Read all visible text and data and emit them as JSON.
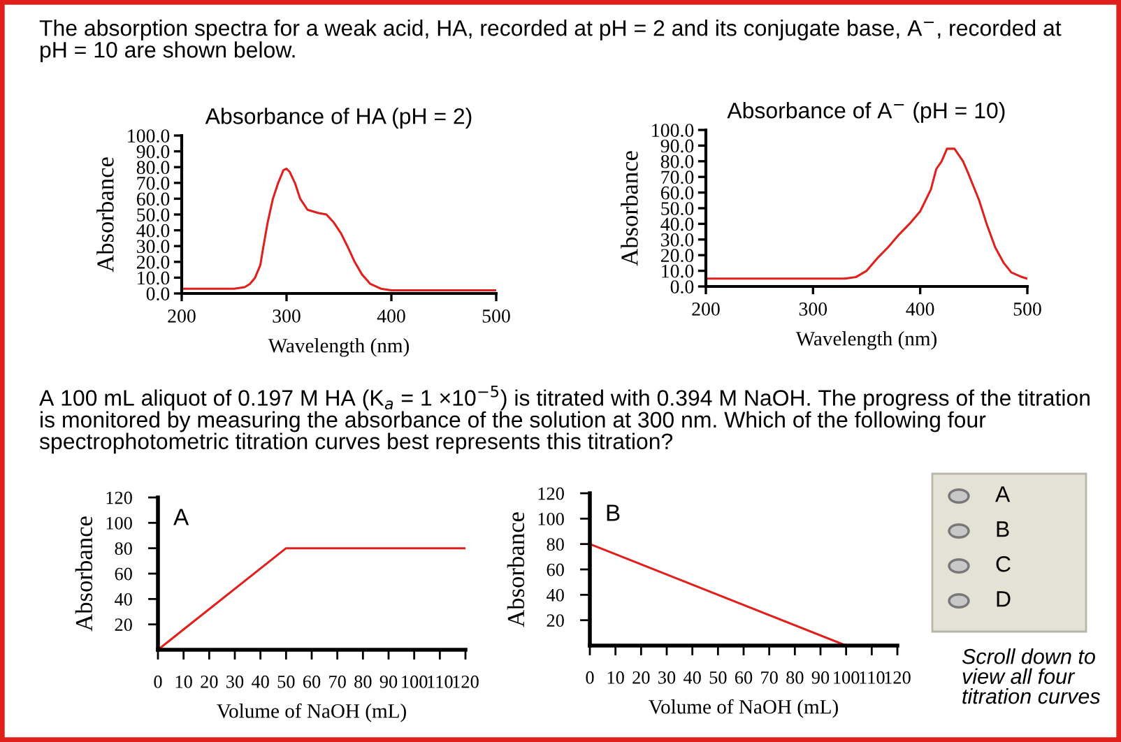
{
  "chart_data": [
    {
      "type": "other",
      "annotations": [
        "The absorption spectra for a weak acid, HA, recorded at pH = 2 and its conjugate base, A$^{−}$, recorded at\npH = 10 are shown below.",
        "A 100 mL aliquot of 0.197 M HA (K$_{a}$ = 1 ×10$^{−5}$) is titrated with 0.394 M NaOH. The progress of the titration\nis monitored by measuring the absorbance of the solution at 300 nm. Which of the following four\nspectrophotometric titration curves best represents this titration?",
        "A",
        "B",
        "C",
        "D",
        "Scroll down to\nview all four\ntitration curves"
      ]
    },
    {
      "type": "line",
      "title": "Absorbance of HA (pH = 2)",
      "xlabel": "Wavelength (nm)",
      "ylabel": "Absorbance",
      "x": [
        200,
        250,
        260,
        265,
        270,
        275,
        278,
        282,
        287,
        292,
        297,
        300,
        303,
        308,
        313,
        320,
        330,
        338,
        345,
        352,
        358,
        365,
        372,
        380,
        390,
        400,
        500
      ],
      "series": [
        {
          "color": "#e0201c",
          "values": [
            3,
            3,
            4,
            6,
            10,
            18,
            30,
            45,
            60,
            70,
            78,
            79,
            77,
            70,
            60,
            53,
            51,
            50,
            45,
            38,
            30,
            20,
            12,
            6,
            3,
            2,
            2
          ]
        }
      ],
      "xlim": [
        200,
        500
      ],
      "xticks": [
        200,
        300,
        400,
        500
      ],
      "ylim": [
        0,
        100
      ],
      "yticks": [
        {
          "value": 0,
          "label": "0.0"
        },
        {
          "value": 10,
          "label": "10.0"
        },
        {
          "value": 20,
          "label": "20.0"
        },
        {
          "value": 30,
          "label": "30.0"
        },
        {
          "value": 40,
          "label": "40.0"
        },
        {
          "value": 50,
          "label": "50.0"
        },
        {
          "value": 60,
          "label": "60.0"
        },
        {
          "value": 70,
          "label": "70.0"
        },
        {
          "value": 80,
          "label": "80.0"
        },
        {
          "value": 90,
          "label": "90.0"
        },
        {
          "value": 100,
          "label": "100.0"
        }
      ],
      "grid": false,
      "legend": false
    },
    {
      "type": "line",
      "title": "Absorbance of A$^{−}$ (pH = 10)",
      "xlabel": "Wavelength (nm)",
      "ylabel": "Absorbance",
      "x": [
        200,
        330,
        340,
        350,
        360,
        370,
        380,
        390,
        400,
        410,
        415,
        420,
        425,
        432,
        440,
        445,
        455,
        462,
        470,
        478,
        485,
        495,
        500
      ],
      "series": [
        {
          "color": "#e0201c",
          "values": [
            5,
            5,
            6,
            10,
            18,
            25,
            33,
            40,
            48,
            62,
            75,
            80,
            88,
            88,
            80,
            72,
            55,
            40,
            25,
            15,
            9,
            6,
            5
          ]
        }
      ],
      "xlim": [
        200,
        500
      ],
      "xticks": [
        200,
        300,
        400,
        500
      ],
      "ylim": [
        0,
        100
      ],
      "yticks": [
        {
          "value": 0,
          "label": "0.0"
        },
        {
          "value": 10,
          "label": "10.0"
        },
        {
          "value": 20,
          "label": "20.0"
        },
        {
          "value": 30,
          "label": "30.0"
        },
        {
          "value": 40,
          "label": "40.0"
        },
        {
          "value": 50,
          "label": "50.0"
        },
        {
          "value": 60,
          "label": "60.0"
        },
        {
          "value": 70,
          "label": "70.0"
        },
        {
          "value": 80,
          "label": "80.0"
        },
        {
          "value": 90,
          "label": "90.0"
        },
        {
          "value": 100,
          "label": "100.0"
        }
      ],
      "grid": false,
      "legend": false
    },
    {
      "type": "line",
      "xlabel": "Volume of NaOH (mL)",
      "ylabel": "Absorbance",
      "annotations": [
        "A"
      ],
      "x": [
        0,
        50,
        120
      ],
      "series": [
        {
          "color": "#e0201c",
          "values": [
            0,
            80,
            80
          ]
        }
      ],
      "xlim": [
        0,
        120
      ],
      "xticks": [
        0,
        10,
        20,
        30,
        40,
        50,
        60,
        70,
        80,
        90,
        100,
        110,
        120
      ],
      "ylim": [
        0,
        120
      ],
      "yticks": [
        20,
        40,
        60,
        80,
        100,
        120
      ],
      "grid": false,
      "legend": false
    },
    {
      "type": "line",
      "xlabel": "Volume of NaOH (mL)",
      "ylabel": "Absorbance",
      "annotations": [
        "B"
      ],
      "x": [
        0,
        100,
        120
      ],
      "series": [
        {
          "color": "#e0201c",
          "values": [
            80,
            0,
            0
          ]
        }
      ],
      "xlim": [
        0,
        120
      ],
      "xticks": [
        0,
        10,
        20,
        30,
        40,
        50,
        60,
        70,
        80,
        90,
        100,
        110,
        120
      ],
      "ylim": [
        0,
        120
      ],
      "yticks": [
        20,
        40,
        60,
        80,
        100,
        120
      ],
      "grid": false,
      "legend": false
    }
  ]
}
